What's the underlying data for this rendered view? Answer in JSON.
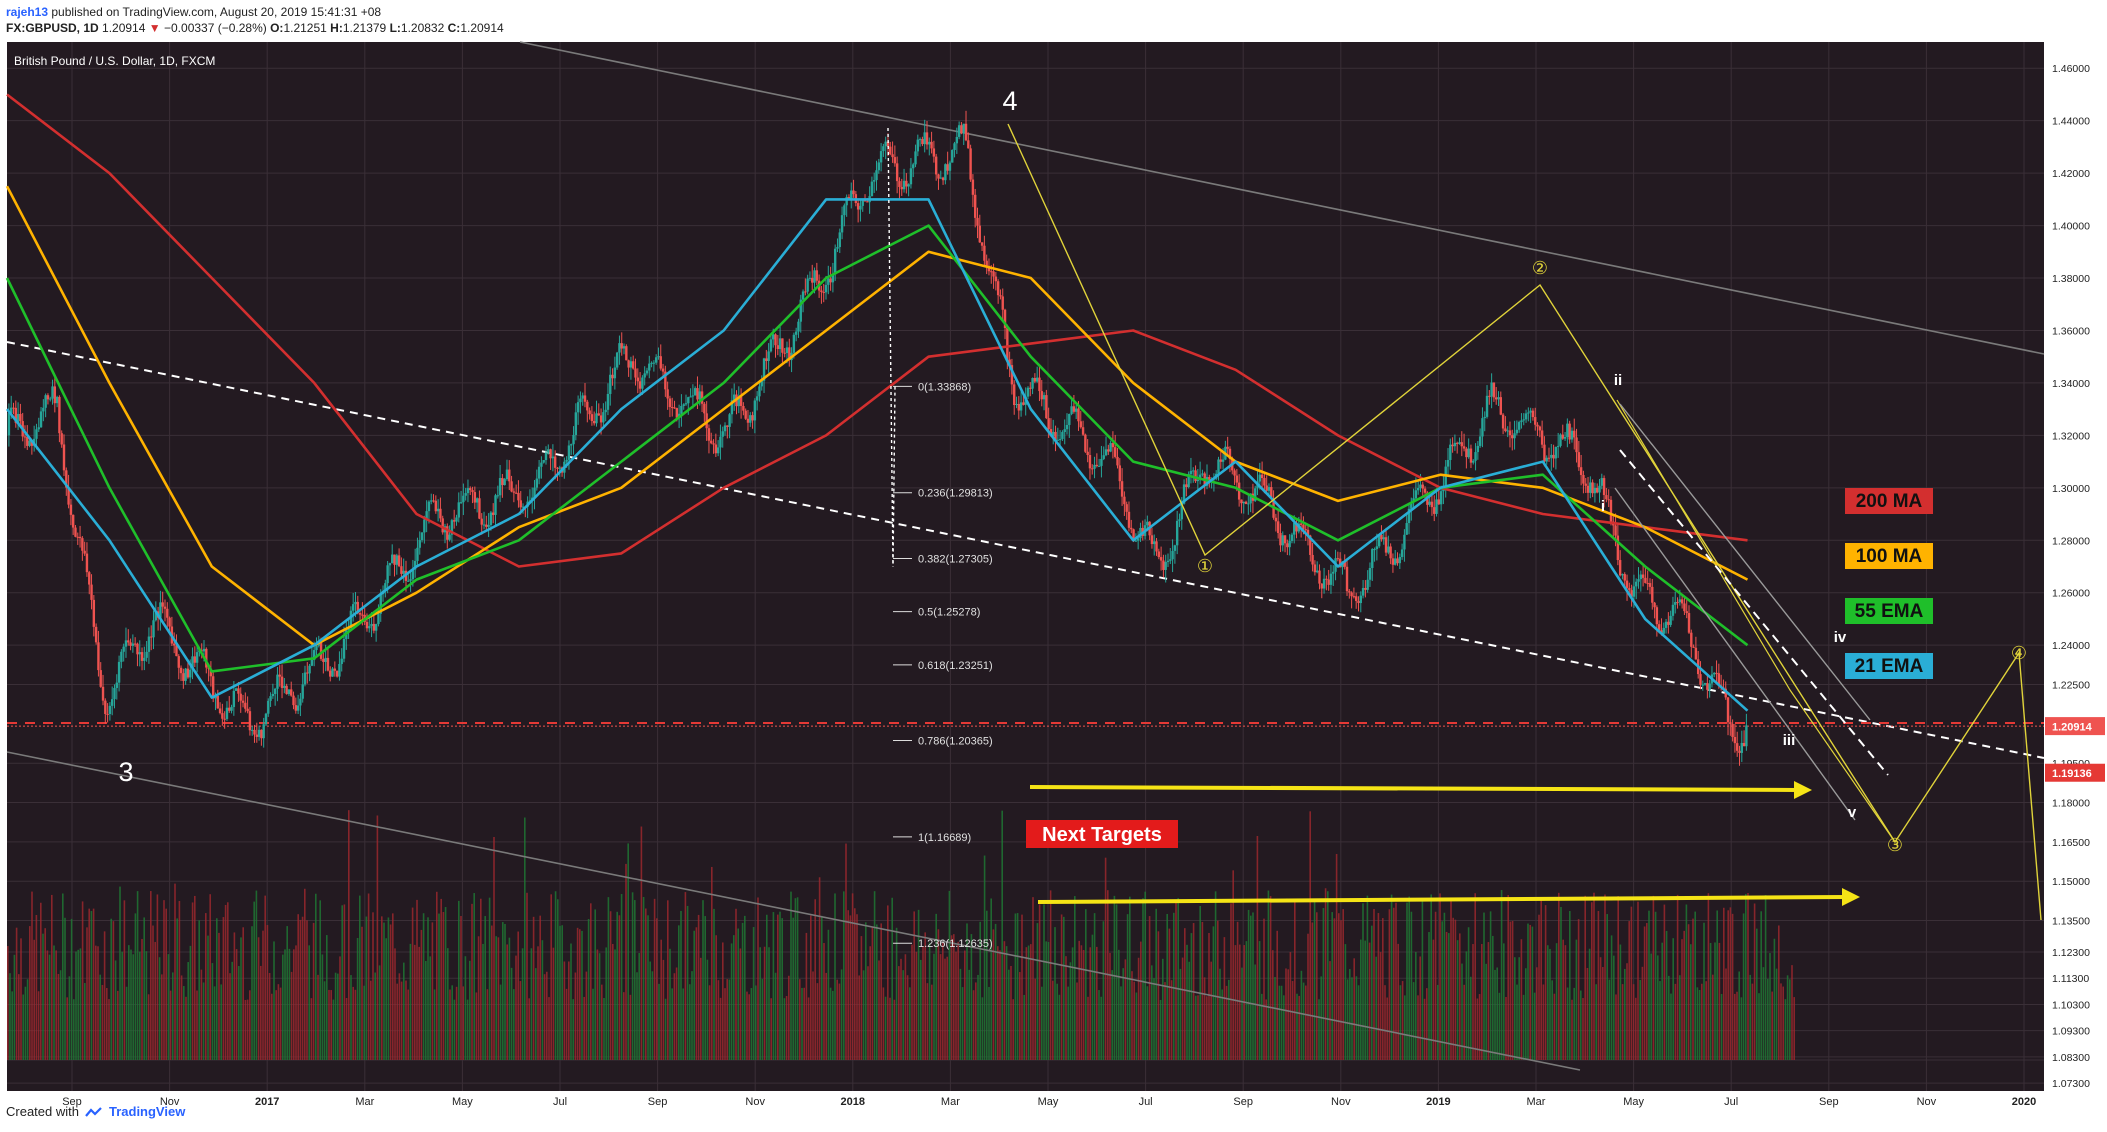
{
  "header": {
    "user": "rajeh13",
    "published": "published on TradingView.com, August 20, 2019 15:41:31 +08",
    "symbol": "FX:GBPUSD, 1D",
    "last": "1.20914",
    "change": "−0.00337 (−0.28%)",
    "open_label": "O:",
    "open": "1.21251",
    "high_label": "H:",
    "high": "1.21379",
    "low_label": "L:",
    "low": "1.20832",
    "close_label": "C:",
    "close": "1.20914"
  },
  "footer": {
    "created_with": "Created with",
    "brand": "TradingView"
  },
  "colors": {
    "background": "#231a21",
    "ma200": "#d32f2f",
    "ma100": "#ffb300",
    "ema55": "#1fbf2a",
    "ema21": "#2aaed6",
    "arrow": "#f5e416",
    "price_up": "#26a69a",
    "price_down": "#ef5350"
  },
  "chart_data": {
    "type": "line",
    "title": "British Pound / U.S. Dollar, 1D, FXCM",
    "x_tick_labels": [
      "Sep",
      "Nov",
      "2017",
      "Mar",
      "May",
      "Jul",
      "Sep",
      "Nov",
      "2018",
      "Mar",
      "May",
      "Jul",
      "Sep",
      "Nov",
      "2019",
      "Mar",
      "May",
      "Jul",
      "Sep",
      "Nov",
      "2020"
    ],
    "y_axis_ticks": [
      "1.46000",
      "1.44000",
      "1.42000",
      "1.40000",
      "1.38000",
      "1.36000",
      "1.34000",
      "1.32000",
      "1.30000",
      "1.28000",
      "1.26000",
      "1.24000",
      "1.22500",
      "1.19500",
      "1.18000",
      "1.16500",
      "1.15000",
      "1.13500",
      "1.12300",
      "1.11300",
      "1.10300",
      "1.09300",
      "1.08300",
      "1.07300"
    ],
    "ylim": [
      1.07,
      1.47
    ],
    "current_price_label": "1.20914",
    "support_label": "1.19136",
    "legend": [
      {
        "name": "200 MA",
        "color": "#d32f2f"
      },
      {
        "name": "100 MA",
        "color": "#ffb300"
      },
      {
        "name": "55 EMA",
        "color": "#1fbf2a"
      },
      {
        "name": "21 EMA",
        "color": "#2aaed6"
      }
    ],
    "fibonacci": [
      {
        "label": "0(1.33868)",
        "value": 1.33868
      },
      {
        "label": "0.236(1.29813)",
        "value": 1.29813
      },
      {
        "label": "0.382(1.27305)",
        "value": 1.27305
      },
      {
        "label": "0.5(1.25278)",
        "value": 1.25278
      },
      {
        "label": "0.618(1.23251)",
        "value": 1.23251
      },
      {
        "label": "0.786(1.20365)",
        "value": 1.20365
      },
      {
        "label": "1(1.16689)",
        "value": 1.16689
      },
      {
        "label": "1.236(1.12635)",
        "value": 1.12635
      }
    ],
    "wave_labels": [
      "4",
      "3",
      "①",
      "②",
      "③",
      "④",
      "i",
      "ii",
      "iii",
      "iv",
      "v"
    ],
    "annotation": "Next Targets",
    "price_series": [
      {
        "x": "2016-08",
        "y": 1.32
      },
      {
        "x": "2016-09",
        "y": 1.33
      },
      {
        "x": "2016-10",
        "y": 1.22
      },
      {
        "x": "2016-11",
        "y": 1.25
      },
      {
        "x": "2017-01",
        "y": 1.21
      },
      {
        "x": "2017-03",
        "y": 1.24
      },
      {
        "x": "2017-05",
        "y": 1.29
      },
      {
        "x": "2017-07",
        "y": 1.3
      },
      {
        "x": "2017-09",
        "y": 1.35
      },
      {
        "x": "2017-11",
        "y": 1.32
      },
      {
        "x": "2018-01",
        "y": 1.38
      },
      {
        "x": "2018-02",
        "y": 1.42
      },
      {
        "x": "2018-04",
        "y": 1.43
      },
      {
        "x": "2018-05",
        "y": 1.34
      },
      {
        "x": "2018-07",
        "y": 1.31
      },
      {
        "x": "2018-08",
        "y": 1.27
      },
      {
        "x": "2018-09",
        "y": 1.31
      },
      {
        "x": "2018-10",
        "y": 1.3
      },
      {
        "x": "2018-12",
        "y": 1.26
      },
      {
        "x": "2019-01",
        "y": 1.28
      },
      {
        "x": "2019-03",
        "y": 1.33
      },
      {
        "x": "2019-05",
        "y": 1.31
      },
      {
        "x": "2019-06",
        "y": 1.26
      },
      {
        "x": "2019-07",
        "y": 1.25
      },
      {
        "x": "2019-08",
        "y": 1.209
      }
    ],
    "ma200": [
      1.45,
      1.42,
      1.38,
      1.34,
      1.29,
      1.27,
      1.275,
      1.3,
      1.32,
      1.35,
      1.355,
      1.36,
      1.345,
      1.32,
      1.3,
      1.29,
      1.285,
      1.28
    ],
    "ma100": [
      1.415,
      1.34,
      1.27,
      1.24,
      1.26,
      1.285,
      1.3,
      1.33,
      1.36,
      1.39,
      1.38,
      1.34,
      1.31,
      1.295,
      1.305,
      1.3,
      1.285,
      1.265
    ],
    "ema55": [
      1.38,
      1.3,
      1.23,
      1.235,
      1.265,
      1.28,
      1.31,
      1.34,
      1.38,
      1.4,
      1.35,
      1.31,
      1.3,
      1.28,
      1.3,
      1.305,
      1.27,
      1.24
    ],
    "ema21": [
      1.33,
      1.28,
      1.22,
      1.24,
      1.27,
      1.29,
      1.33,
      1.36,
      1.41,
      1.41,
      1.33,
      1.28,
      1.31,
      1.27,
      1.3,
      1.31,
      1.25,
      1.215
    ]
  }
}
